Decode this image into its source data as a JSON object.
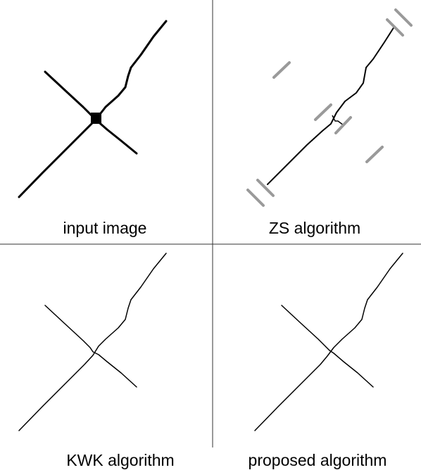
{
  "panels": {
    "top_left": {
      "caption": "input image"
    },
    "top_right": {
      "caption": "ZS algorithm"
    },
    "bottom_left": {
      "caption": "KWK algorithm"
    },
    "bottom_right": {
      "caption": "proposed algorithm"
    }
  },
  "colors": {
    "line": "#000000",
    "divider": "#333333",
    "marker": "#9a9a9a",
    "background": "#ffffff"
  }
}
